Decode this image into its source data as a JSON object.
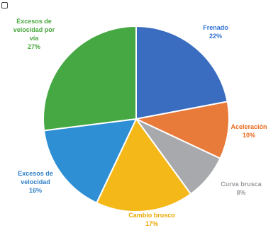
{
  "chart_data": {
    "type": "pie",
    "title": "",
    "slices": [
      {
        "label": "Frenado",
        "value": 22,
        "value_label": "22%",
        "color": "#3a6cbf",
        "label_color": "#2e6fd0"
      },
      {
        "label": "Aceleración",
        "value": 10,
        "value_label": "10%",
        "color": "#e87a3a",
        "label_color": "#ea6a1c"
      },
      {
        "label": "Curva brusca",
        "value": 8,
        "value_label": "8%",
        "color": "#a7a9ac",
        "label_color": "#9a9ca0"
      },
      {
        "label": "Cambio brusco",
        "value": 17,
        "value_label": "17%",
        "color": "#f5b819",
        "label_color": "#e9a800"
      },
      {
        "label": "Excesos de velocidad",
        "value": 16,
        "value_label": "16%",
        "color": "#2f8fd4",
        "label_color": "#2f7fc8"
      },
      {
        "label": "Excesos de velocidad por vía",
        "value": 27,
        "value_label": "27%",
        "color": "#46a843",
        "label_color": "#4aa83f"
      }
    ]
  }
}
